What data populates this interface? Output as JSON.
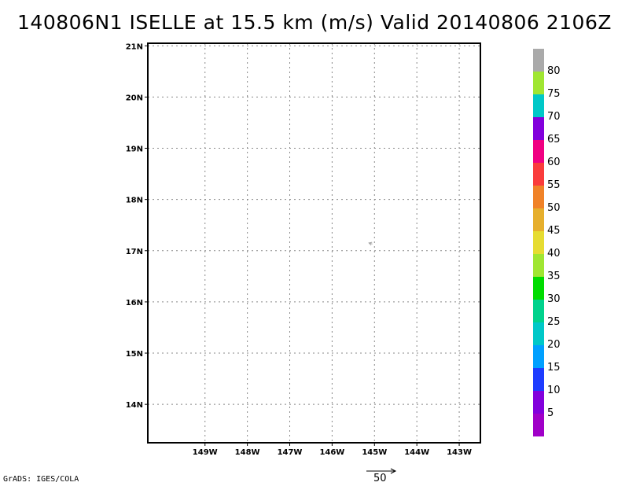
{
  "title": "140806N1 ISELLE at 15.5 km (m/s) Valid 20140806 2106Z",
  "credit": "GrADS: IGES/COLA",
  "map": {
    "lat_min": 13.25,
    "lat_max": 21.05,
    "lon_min": -150.35,
    "lon_max": -142.5,
    "lat_ticks": [
      {
        "value": 21,
        "label": "21N"
      },
      {
        "value": 20,
        "label": "20N"
      },
      {
        "value": 19,
        "label": "19N"
      },
      {
        "value": 18,
        "label": "18N"
      },
      {
        "value": 17,
        "label": "17N"
      },
      {
        "value": 16,
        "label": "16N"
      },
      {
        "value": 15,
        "label": "15N"
      },
      {
        "value": 14,
        "label": "14N"
      }
    ],
    "lon_ticks": [
      {
        "value": -149,
        "label": "149W"
      },
      {
        "value": -148,
        "label": "148W"
      },
      {
        "value": -147,
        "label": "147W"
      },
      {
        "value": -146,
        "label": "146W"
      },
      {
        "value": -145,
        "label": "145W"
      },
      {
        "value": -144,
        "label": "144W"
      },
      {
        "value": -143,
        "label": "143W"
      }
    ],
    "grid": true,
    "wind_vectors": [
      {
        "lon": -145.05,
        "lat": 17.13,
        "u": -2.5,
        "v": 0.8,
        "color": "#a0a0a0"
      }
    ]
  },
  "reference_vector": {
    "label": "50",
    "magnitude": 50
  },
  "colorbar": {
    "segments": [
      {
        "color": "#a000c8"
      },
      {
        "color": "#8200dc"
      },
      {
        "color": "#1e3cff"
      },
      {
        "color": "#00a0ff"
      },
      {
        "color": "#00c8c8"
      },
      {
        "color": "#00d28c"
      },
      {
        "color": "#00dc00"
      },
      {
        "color": "#a0e632"
      },
      {
        "color": "#e6dc32"
      },
      {
        "color": "#e6af2d"
      },
      {
        "color": "#f08228"
      },
      {
        "color": "#fa3c3c"
      },
      {
        "color": "#f00082"
      },
      {
        "color": "#8200dc"
      },
      {
        "color": "#00c8c8"
      },
      {
        "color": "#a0e632"
      },
      {
        "color": "#aaaaaa"
      }
    ],
    "labels": [
      "5",
      "10",
      "15",
      "20",
      "25",
      "30",
      "35",
      "40",
      "45",
      "50",
      "55",
      "60",
      "65",
      "70",
      "75",
      "80"
    ]
  }
}
